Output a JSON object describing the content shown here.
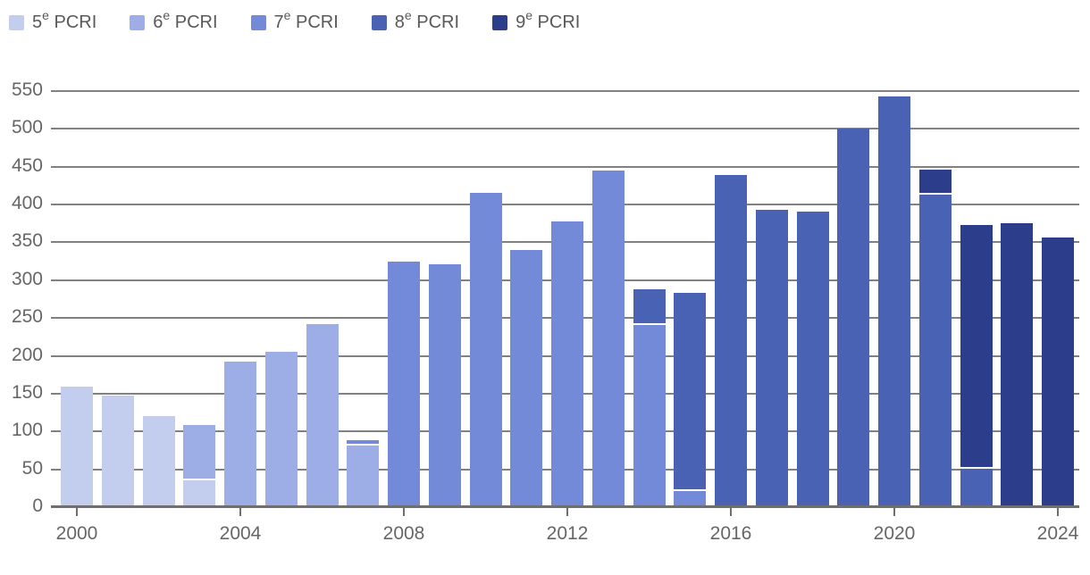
{
  "chart_data": {
    "type": "bar",
    "stacked": true,
    "title": "",
    "xlabel": "",
    "ylabel": "",
    "ylim": [
      0,
      550
    ],
    "grid": true,
    "legend_position": "top-left",
    "x": [
      2000,
      2001,
      2002,
      2003,
      2004,
      2005,
      2006,
      2007,
      2008,
      2009,
      2010,
      2011,
      2012,
      2013,
      2014,
      2015,
      2016,
      2017,
      2018,
      2019,
      2020,
      2021,
      2022,
      2023,
      2024
    ],
    "yticks": [
      0,
      50,
      100,
      150,
      200,
      250,
      300,
      350,
      400,
      450,
      500,
      550
    ],
    "xticks": [
      2000,
      2004,
      2008,
      2012,
      2016,
      2020,
      2024
    ],
    "series": [
      {
        "name": "5e PCRI",
        "legend": {
          "num": "5",
          "sup": "e",
          "rest": " PCRI"
        },
        "color": "#c3cdee",
        "values": [
          159,
          148,
          120,
          36,
          0,
          0,
          0,
          0,
          0,
          0,
          0,
          0,
          0,
          0,
          0,
          0,
          0,
          0,
          0,
          0,
          0,
          0,
          0,
          0,
          0
        ]
      },
      {
        "name": "6e PCRI",
        "legend": {
          "num": "6",
          "sup": "e",
          "rest": " PCRI"
        },
        "color": "#9dade6",
        "values": [
          0,
          0,
          0,
          70,
          192,
          205,
          242,
          82,
          0,
          0,
          0,
          0,
          0,
          0,
          0,
          0,
          0,
          0,
          0,
          0,
          0,
          0,
          0,
          0,
          0
        ]
      },
      {
        "name": "7e PCRI",
        "legend": {
          "num": "7",
          "sup": "e",
          "rest": " PCRI"
        },
        "color": "#738ad9",
        "values": [
          0,
          0,
          0,
          0,
          0,
          0,
          0,
          4,
          324,
          321,
          415,
          340,
          378,
          445,
          241,
          21,
          0,
          0,
          0,
          0,
          0,
          0,
          0,
          0,
          0
        ]
      },
      {
        "name": "8e PCRI",
        "legend": {
          "num": "8",
          "sup": "e",
          "rest": " PCRI"
        },
        "color": "#4a62b4",
        "values": [
          0,
          0,
          0,
          0,
          0,
          0,
          0,
          0,
          0,
          0,
          0,
          0,
          0,
          0,
          45,
          260,
          439,
          393,
          391,
          500,
          543,
          413,
          51,
          0,
          0
        ]
      },
      {
        "name": "9e PCRI",
        "legend": {
          "num": "9",
          "sup": "e",
          "rest": " PCRI"
        },
        "color": "#2b3d8b",
        "values": [
          0,
          0,
          0,
          0,
          0,
          0,
          0,
          0,
          0,
          0,
          0,
          0,
          0,
          0,
          0,
          0,
          0,
          0,
          0,
          0,
          0,
          31,
          320,
          375,
          356
        ]
      }
    ],
    "colors": {
      "gridline": "#818181",
      "axis": "#6f6f6f",
      "axis_text": "#666666",
      "legend_text": "#595959",
      "background": "#ffffff"
    }
  }
}
